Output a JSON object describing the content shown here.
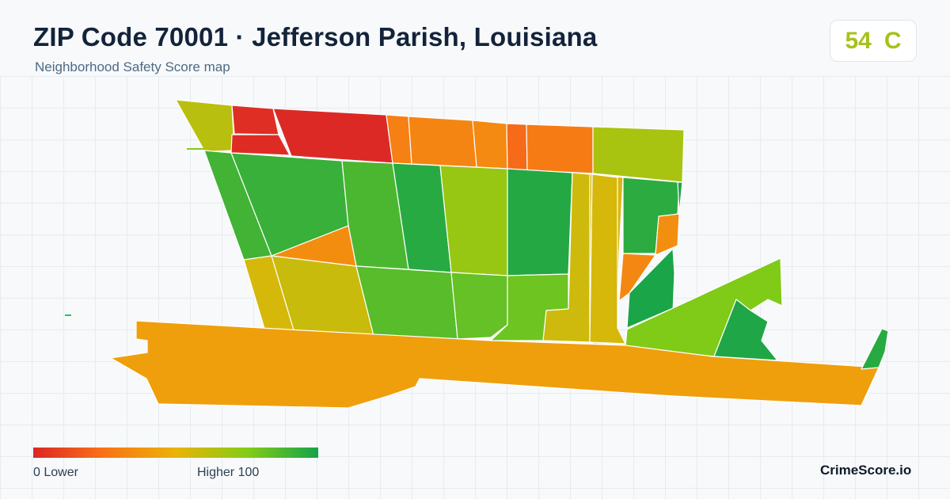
{
  "header": {
    "title": "ZIP Code 70001 · Jefferson Parish, Louisiana",
    "subtitle": "Neighborhood Safety Score map"
  },
  "score": {
    "value": "54",
    "grade": "C",
    "color": "#a8c11a"
  },
  "legend": {
    "low_label": "0  Lower",
    "high_label": "Higher  100",
    "gradient": [
      "#dc2626",
      "#f97316",
      "#eab308",
      "#84cc16",
      "#16a34a"
    ]
  },
  "brand": {
    "label": "CrimeScore.io"
  },
  "map": {
    "score_scale": [
      0,
      100
    ],
    "tracts": [
      {
        "id": "t1",
        "score": 62
      },
      {
        "id": "t2",
        "score": 3
      },
      {
        "id": "t3",
        "score": 2
      },
      {
        "id": "t4",
        "score": 1
      },
      {
        "id": "t5",
        "score": 30
      },
      {
        "id": "t6",
        "score": 32
      },
      {
        "id": "t7",
        "score": 34
      },
      {
        "id": "t8",
        "score": 22
      },
      {
        "id": "t9",
        "score": 28
      },
      {
        "id": "t10",
        "score": 66
      },
      {
        "id": "t11",
        "score": 90
      },
      {
        "id": "t12",
        "score": 92
      },
      {
        "id": "t13",
        "score": 88
      },
      {
        "id": "t14",
        "score": 96
      },
      {
        "id": "t15",
        "score": 70
      },
      {
        "id": "t16",
        "score": 97
      },
      {
        "id": "t17",
        "score": 56
      },
      {
        "id": "t18",
        "score": 54
      },
      {
        "id": "t19",
        "score": 95
      },
      {
        "id": "t20",
        "score": 36
      },
      {
        "id": "t21",
        "score": 33
      },
      {
        "id": "t22",
        "score": 98
      },
      {
        "id": "t23",
        "score": 35
      },
      {
        "id": "t24",
        "score": 55
      },
      {
        "id": "t25",
        "score": 58
      },
      {
        "id": "t26",
        "score": 85
      },
      {
        "id": "t27",
        "score": 82
      },
      {
        "id": "t28",
        "score": 80
      },
      {
        "id": "t29",
        "score": 57
      },
      {
        "id": "t30",
        "score": 55
      },
      {
        "id": "t31",
        "score": 99
      },
      {
        "id": "t32",
        "score": 76
      },
      {
        "id": "t33",
        "score": 98
      },
      {
        "id": "t34",
        "score": 42
      },
      {
        "id": "t35",
        "score": 96
      }
    ]
  }
}
